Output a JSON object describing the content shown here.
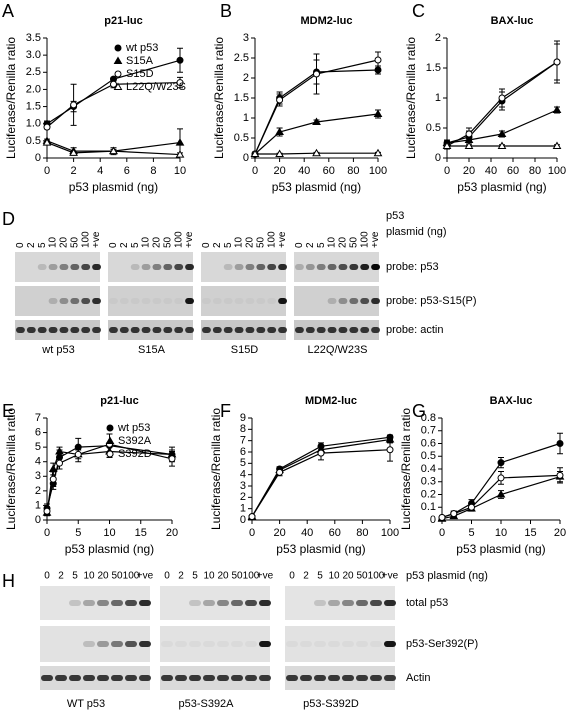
{
  "panel_labels": [
    "A",
    "B",
    "C",
    "D",
    "E",
    "F",
    "G",
    "H"
  ],
  "chart_data": [
    {
      "type": "line",
      "title": "p21-luc",
      "x_label": "p53 plasmid (ng)",
      "y_label": "Luciferase/Renilla ratio",
      "x": [
        0,
        2,
        5,
        10
      ],
      "xlim": [
        0,
        10
      ],
      "xticks": [
        0,
        2,
        4,
        6,
        8,
        10
      ],
      "ylim": [
        0,
        3.5
      ],
      "yticks": [
        0,
        0.5,
        {
          "value": 1,
          "label": "1.0"
        },
        1.5,
        {
          "value": 2,
          "label": "2.0"
        },
        2.5,
        {
          "value": 3,
          "label": "3.0"
        },
        3.5
      ],
      "legend": "upper right",
      "color": "#000000",
      "series": [
        {
          "name": "wt p53",
          "marker": "filled-circle",
          "values": [
            1.0,
            1.5,
            2.3,
            2.85
          ],
          "errors": [
            0.08,
            0.15,
            0.05,
            0.35
          ]
        },
        {
          "name": "S15A",
          "marker": "filled-triangle",
          "values": [
            0.5,
            0.2,
            0.2,
            0.45
          ],
          "errors": [
            0.05,
            0.1,
            0.1,
            0.4
          ]
        },
        {
          "name": "S15D",
          "marker": "open-circle",
          "values": [
            0.9,
            1.55,
            2.15,
            2.2
          ],
          "errors": [
            0.05,
            0.6,
            0.1,
            0.15
          ]
        },
        {
          "name": "L22Q/W23S",
          "marker": "open-triangle",
          "values": [
            0.45,
            0.15,
            0.2,
            0.1
          ],
          "errors": [
            0.05,
            0.05,
            0.05,
            0.05
          ]
        }
      ]
    },
    {
      "type": "line",
      "title": "MDM2-luc",
      "x_label": "p53 plasmid (ng)",
      "y_label": "Luciferase/Renilla ratio",
      "x": [
        0,
        20,
        50,
        100
      ],
      "xlim": [
        0,
        100
      ],
      "xticks": [
        0,
        20,
        40,
        60,
        80,
        100
      ],
      "ylim": [
        0,
        3
      ],
      "yticks": [
        0,
        0.5,
        1,
        1.5,
        2,
        2.5,
        3
      ],
      "color": "#000000",
      "series": [
        {
          "marker": "filled-circle",
          "values": [
            0.1,
            1.5,
            2.15,
            2.2
          ],
          "errors": [
            0.05,
            0.15,
            0.3,
            0.1
          ]
        },
        {
          "marker": "filled-triangle",
          "values": [
            0.1,
            0.65,
            0.9,
            1.1
          ],
          "errors": [
            0.05,
            0.1,
            0.05,
            0.1
          ]
        },
        {
          "marker": "open-circle",
          "values": [
            0.1,
            1.45,
            2.1,
            2.45
          ],
          "errors": [
            0.05,
            0.15,
            0.5,
            0.2
          ]
        },
        {
          "marker": "open-triangle",
          "values": [
            0.1,
            0.1,
            0.12,
            0.12
          ],
          "errors": [
            0.02,
            0.02,
            0.02,
            0.02
          ]
        }
      ]
    },
    {
      "type": "line",
      "title": "BAX-luc",
      "x_label": "p53 plasmid (ng)",
      "y_label": "Luciferase/Renilla ratio",
      "x": [
        0,
        20,
        50,
        100
      ],
      "xlim": [
        0,
        100
      ],
      "xticks": [
        0,
        20,
        40,
        60,
        80,
        100
      ],
      "ylim": [
        0,
        2
      ],
      "yticks": [
        0,
        0.5,
        1,
        1.5,
        2
      ],
      "color": "#000000",
      "series": [
        {
          "marker": "filled-circle",
          "values": [
            0.25,
            0.35,
            0.95,
            1.6
          ],
          "errors": [
            0.05,
            0.1,
            0.15,
            0.3
          ]
        },
        {
          "marker": "filled-triangle",
          "values": [
            0.25,
            0.3,
            0.4,
            0.8
          ],
          "errors": [
            0.03,
            0.05,
            0.05,
            0.05
          ]
        },
        {
          "marker": "open-circle",
          "values": [
            0.2,
            0.4,
            1.0,
            1.6
          ],
          "errors": [
            0.05,
            0.1,
            0.15,
            0.35
          ]
        },
        {
          "marker": "open-triangle",
          "values": [
            0.2,
            0.2,
            0.2,
            0.2
          ],
          "errors": [
            0.02,
            0.02,
            0.02,
            0.02
          ]
        }
      ]
    },
    {
      "type": "line",
      "title": "p21-luc",
      "x_label": "p53 plasmid (ng)",
      "y_label": "Luciferase/Renilla ratio",
      "x": [
        0,
        1,
        2,
        5,
        10,
        20
      ],
      "xlim": [
        0,
        20
      ],
      "xticks": [
        0,
        5,
        10,
        15,
        20
      ],
      "ylim": [
        0,
        7
      ],
      "yticks": [
        0,
        1,
        2,
        3,
        4,
        5,
        6,
        7
      ],
      "legend": "upper right",
      "color": "#000000",
      "series": [
        {
          "name": "wt p53",
          "marker": "filled-circle",
          "values": [
            0.8,
            2.5,
            4.3,
            5.0,
            5.1,
            4.5
          ],
          "errors": [
            0.3,
            0.4,
            0.5,
            0.6,
            0.8,
            0.5
          ]
        },
        {
          "name": "S392A",
          "marker": "filled-triangle",
          "values": [
            0.5,
            3.5,
            4.7,
            4.5,
            4.7,
            4.5
          ],
          "errors": [
            0.2,
            0.4,
            0.3,
            0.3,
            0.4,
            0.3
          ]
        },
        {
          "name": "S392D",
          "marker": "open-circle",
          "values": [
            0.6,
            2.8,
            3.9,
            4.5,
            5.2,
            4.2
          ],
          "errors": [
            0.3,
            0.5,
            0.4,
            0.5,
            0.7,
            0.5
          ]
        }
      ]
    },
    {
      "type": "line",
      "title": "MDM2-luc",
      "x_label": "p53 plasmid (ng)",
      "y_label": "Luciferase/Renilla ratio",
      "x": [
        0,
        20,
        50,
        100
      ],
      "xlim": [
        0,
        100
      ],
      "xticks": [
        0,
        20,
        40,
        60,
        80,
        100
      ],
      "ylim": [
        0,
        9
      ],
      "yticks": [
        0,
        1,
        2,
        3,
        4,
        5,
        6,
        7,
        8,
        9
      ],
      "color": "#000000",
      "series": [
        {
          "marker": "filled-circle",
          "values": [
            0.3,
            4.5,
            6.5,
            7.3
          ],
          "errors": [
            0.1,
            0.2,
            0.3,
            0.2
          ]
        },
        {
          "marker": "filled-triangle",
          "values": [
            0.3,
            4.4,
            6.2,
            7.1
          ],
          "errors": [
            0.1,
            0.2,
            0.3,
            0.3
          ]
        },
        {
          "marker": "open-circle",
          "values": [
            0.3,
            4.2,
            5.9,
            6.2
          ],
          "errors": [
            0.1,
            0.3,
            0.6,
            1.0
          ]
        }
      ]
    },
    {
      "type": "line",
      "title": "BAX-luc",
      "x_label": "p53 plasmid (ng)",
      "y_label": "Luciferase/Renilla ratio",
      "x": [
        0,
        2,
        5,
        10,
        20
      ],
      "xlim": [
        0,
        20
      ],
      "xticks": [
        0,
        5,
        10,
        15,
        20
      ],
      "ylim": [
        0,
        0.8
      ],
      "yticks": [
        0,
        0.1,
        0.2,
        0.3,
        0.4,
        0.5,
        0.6,
        0.7,
        0.8
      ],
      "color": "#000000",
      "series": [
        {
          "marker": "filled-circle",
          "values": [
            0.02,
            0.05,
            0.13,
            0.45,
            0.6
          ],
          "errors": [
            0.01,
            0.02,
            0.03,
            0.04,
            0.08
          ]
        },
        {
          "marker": "filled-triangle",
          "values": [
            0.01,
            0.03,
            0.09,
            0.2,
            0.34
          ],
          "errors": [
            0.01,
            0.01,
            0.02,
            0.03,
            0.04
          ]
        },
        {
          "marker": "open-circle",
          "values": [
            0.02,
            0.05,
            0.1,
            0.33,
            0.35
          ],
          "errors": [
            0.01,
            0.02,
            0.02,
            0.05,
            0.06
          ]
        }
      ]
    }
  ],
  "blots": [
    {
      "lane_header": [
        "p53",
        "plasmid (ng)"
      ],
      "lanes": [
        "0",
        "2",
        "5",
        "10",
        "20",
        "50",
        "100",
        "+ve"
      ],
      "probes": [
        "probe: p53",
        "probe: p53-S15(P)",
        "probe: actin"
      ],
      "groups": [
        "wt p53",
        "S15A",
        "S15D",
        "L22Q/W23S"
      ]
    },
    {
      "lane_header": [
        "p53 plasmid (ng)"
      ],
      "lanes": [
        "0",
        "2",
        "5",
        "10",
        "20",
        "50",
        "100",
        "+ve"
      ],
      "probes": [
        "total p53",
        "p53-Ser392(P)",
        "Actin"
      ],
      "groups": [
        "WT p53",
        "p53-S392A",
        "p53-S392D"
      ]
    }
  ]
}
